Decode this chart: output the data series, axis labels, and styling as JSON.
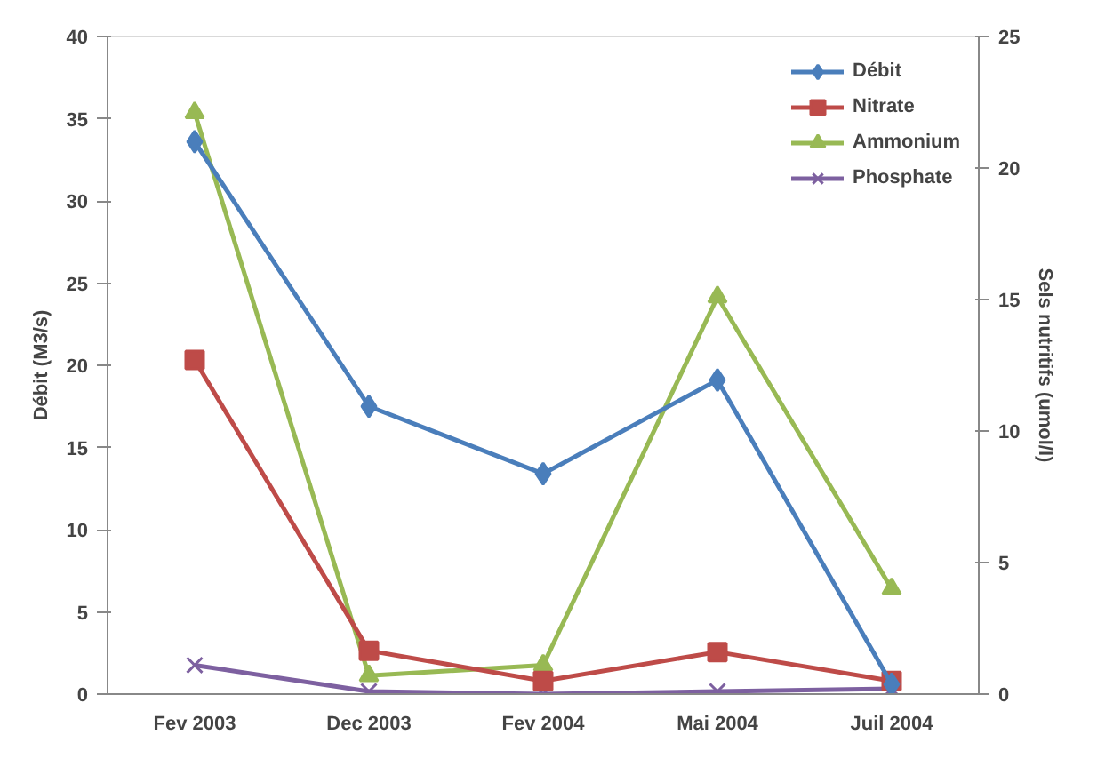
{
  "chart_data": {
    "type": "line",
    "categories": [
      "Fev 2003",
      "Dec 2003",
      "Fev 2004",
      "Mai 2004",
      "Juil 2004"
    ],
    "ylabel": "Débit (M3/s)",
    "y2label": "Sels nutritifs (umol/l)",
    "ylim": [
      0,
      40
    ],
    "yticks": [
      0,
      5,
      10,
      15,
      20,
      25,
      30,
      35,
      40
    ],
    "y2lim": [
      0,
      25
    ],
    "y2ticks": [
      0,
      5,
      10,
      15,
      20,
      25
    ],
    "grid": false,
    "legend": "top right",
    "line_style": "solid",
    "series": [
      {
        "name": "Débit",
        "color": "#4a7ebb",
        "marker": "diamond",
        "values": [
          33.6,
          17.5,
          13.4,
          19.1,
          0.6
        ]
      },
      {
        "name": "Nitrate",
        "color": "#be4b48",
        "marker": "square",
        "axis": "y2",
        "values": [
          12.7,
          1.65,
          0.5,
          1.6,
          0.5
        ]
      },
      {
        "name": "Ammonium",
        "color": "#98b954",
        "marker": "triangle",
        "axis": "y2",
        "values": [
          22.1,
          0.7,
          1.1,
          15.1,
          4.0
        ]
      },
      {
        "name": "Phosphate",
        "color": "#7d60a0",
        "marker": "x",
        "axis": "y2",
        "values": [
          1.1,
          0.1,
          0.0,
          0.1,
          0.2
        ]
      }
    ]
  }
}
